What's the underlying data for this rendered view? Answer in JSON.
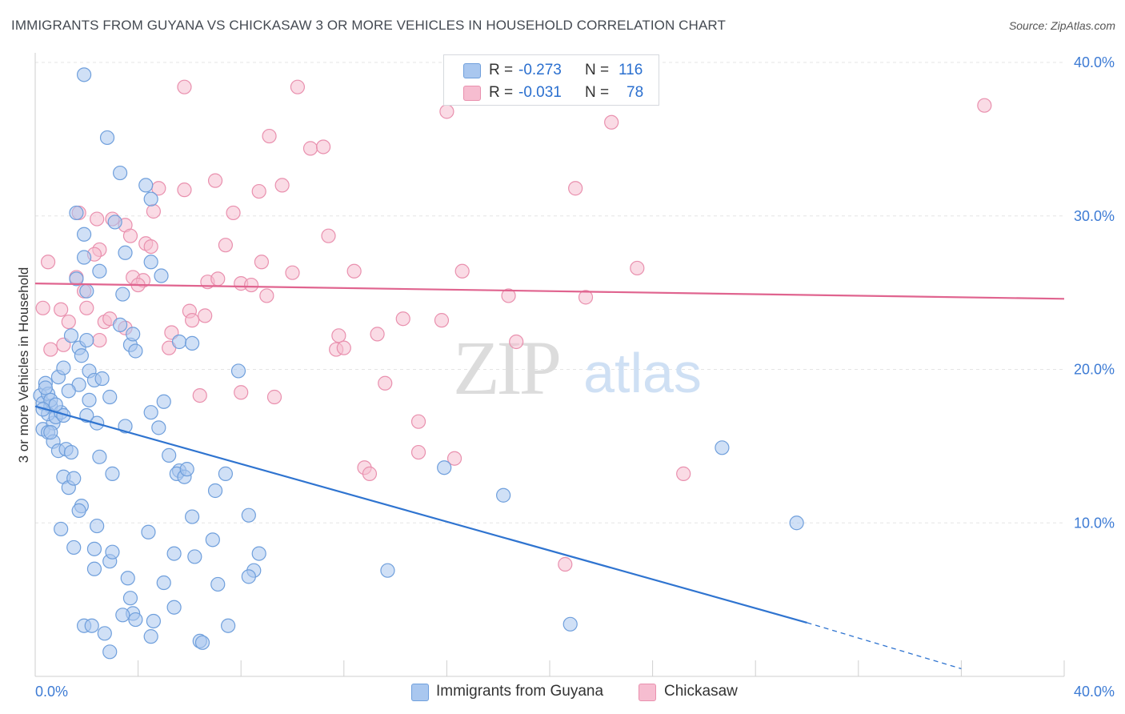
{
  "header": {
    "title": "IMMIGRANTS FROM GUYANA VS CHICKASAW 3 OR MORE VEHICLES IN HOUSEHOLD CORRELATION CHART",
    "source": "Source: ZipAtlas.com"
  },
  "watermark": {
    "zip": "ZIP",
    "atlas": "atlas"
  },
  "legend": {
    "rows": [
      {
        "r_label": "R =",
        "r_value": "-0.273",
        "n_label": "N =",
        "n_value": "116"
      },
      {
        "r_label": "R =",
        "r_value": "-0.031",
        "n_label": "N =",
        "n_value": "78"
      }
    ]
  },
  "bottom_legend": {
    "guyana": "Immigrants from Guyana",
    "chickasaw": "Chickasaw"
  },
  "colors": {
    "guyana_fill": "#a9c7ef",
    "guyana_stroke": "#6f9fdc",
    "guyana_line": "#2f74d0",
    "chickasaw_fill": "#f6bdd0",
    "chickasaw_stroke": "#e990ae",
    "chickasaw_line": "#e0648f",
    "tick_text": "#3d7bd4",
    "grid": "#e5e5e5"
  },
  "chart_data": {
    "type": "scatter",
    "title": "IMMIGRANTS FROM GUYANA VS CHICKASAW 3 OR MORE VEHICLES IN HOUSEHOLD CORRELATION CHART",
    "xlabel": "",
    "ylabel": "3 or more Vehicles in Household",
    "xlim": [
      0,
      40
    ],
    "ylim": [
      0,
      40
    ],
    "x_tick_labels": [
      "0.0%",
      "40.0%"
    ],
    "y_tick_labels": [
      "10.0%",
      "20.0%",
      "30.0%",
      "40.0%"
    ],
    "y_ticks": [
      10,
      20,
      30,
      40
    ],
    "grid": true,
    "legend_position": "top-center",
    "series": [
      {
        "name": "Immigrants from Guyana",
        "R": -0.273,
        "N": 116,
        "trend": {
          "x": [
            0,
            30
          ],
          "y": [
            17.6,
            3.5
          ],
          "dashed_to": [
            36,
            0.5
          ]
        },
        "points": [
          [
            0.2,
            18.3
          ],
          [
            0.3,
            17.8
          ],
          [
            0.4,
            19.1
          ],
          [
            0.5,
            18.4
          ],
          [
            0.6,
            17.6
          ],
          [
            0.3,
            16.1
          ],
          [
            0.7,
            16.5
          ],
          [
            0.5,
            17.1
          ],
          [
            0.9,
            19.5
          ],
          [
            0.4,
            18.8
          ],
          [
            0.6,
            18.0
          ],
          [
            0.8,
            16.9
          ],
          [
            0.3,
            17.4
          ],
          [
            0.5,
            15.9
          ],
          [
            1.0,
            17.2
          ],
          [
            0.7,
            15.3
          ],
          [
            0.9,
            14.7
          ],
          [
            1.2,
            14.8
          ],
          [
            1.4,
            14.6
          ],
          [
            1.1,
            13.0
          ],
          [
            1.3,
            12.3
          ],
          [
            1.5,
            12.9
          ],
          [
            1.8,
            11.1
          ],
          [
            1.7,
            10.8
          ],
          [
            1.0,
            9.6
          ],
          [
            2.4,
            9.8
          ],
          [
            1.5,
            8.4
          ],
          [
            2.3,
            7.0
          ],
          [
            2.9,
            7.5
          ],
          [
            3.6,
            6.4
          ],
          [
            3.7,
            5.1
          ],
          [
            3.8,
            4.1
          ],
          [
            3.4,
            4.0
          ],
          [
            3.9,
            3.7
          ],
          [
            4.5,
            2.6
          ],
          [
            4.6,
            3.6
          ],
          [
            2.7,
            2.8
          ],
          [
            1.9,
            3.3
          ],
          [
            2.9,
            1.6
          ],
          [
            2.2,
            3.3
          ],
          [
            1.6,
            30.2
          ],
          [
            1.9,
            27.3
          ],
          [
            1.9,
            28.8
          ],
          [
            3.1,
            29.6
          ],
          [
            2.5,
            26.4
          ],
          [
            3.5,
            27.6
          ],
          [
            1.6,
            25.9
          ],
          [
            2.0,
            25.1
          ],
          [
            4.5,
            31.1
          ],
          [
            4.3,
            32.0
          ],
          [
            3.3,
            32.8
          ],
          [
            1.9,
            39.2
          ],
          [
            2.8,
            35.1
          ],
          [
            3.4,
            24.9
          ],
          [
            4.5,
            27.0
          ],
          [
            4.9,
            26.1
          ],
          [
            1.4,
            22.2
          ],
          [
            1.7,
            21.4
          ],
          [
            2.0,
            21.9
          ],
          [
            1.8,
            20.9
          ],
          [
            3.3,
            22.9
          ],
          [
            3.7,
            21.6
          ],
          [
            3.8,
            22.3
          ],
          [
            3.9,
            21.2
          ],
          [
            2.1,
            19.9
          ],
          [
            2.3,
            19.3
          ],
          [
            1.1,
            20.1
          ],
          [
            1.7,
            19.0
          ],
          [
            2.1,
            18.0
          ],
          [
            2.9,
            18.2
          ],
          [
            2.4,
            16.5
          ],
          [
            3.5,
            16.3
          ],
          [
            4.5,
            17.2
          ],
          [
            4.8,
            16.2
          ],
          [
            5.0,
            17.9
          ],
          [
            5.6,
            21.8
          ],
          [
            6.1,
            21.7
          ],
          [
            5.2,
            14.4
          ],
          [
            5.6,
            13.4
          ],
          [
            5.5,
            13.2
          ],
          [
            5.8,
            13.0
          ],
          [
            5.9,
            13.5
          ],
          [
            3.0,
            13.2
          ],
          [
            2.5,
            14.3
          ],
          [
            6.1,
            10.4
          ],
          [
            7.0,
            12.1
          ],
          [
            7.4,
            13.2
          ],
          [
            6.9,
            8.9
          ],
          [
            8.3,
            10.5
          ],
          [
            8.7,
            8.0
          ],
          [
            5.4,
            8.0
          ],
          [
            6.2,
            7.8
          ],
          [
            7.1,
            6.0
          ],
          [
            8.5,
            6.9
          ],
          [
            8.3,
            6.5
          ],
          [
            5.4,
            4.5
          ],
          [
            5.0,
            6.1
          ],
          [
            6.4,
            2.3
          ],
          [
            6.5,
            2.2
          ],
          [
            7.5,
            3.3
          ],
          [
            4.4,
            9.4
          ],
          [
            3.0,
            8.1
          ],
          [
            7.9,
            19.9
          ],
          [
            13.7,
            6.9
          ],
          [
            15.9,
            13.6
          ],
          [
            18.2,
            11.8
          ],
          [
            20.8,
            3.4
          ],
          [
            26.7,
            14.9
          ],
          [
            29.6,
            10.0
          ],
          [
            2.3,
            8.3
          ],
          [
            2.0,
            17.0
          ],
          [
            1.3,
            18.6
          ],
          [
            0.6,
            15.9
          ],
          [
            0.8,
            17.7
          ],
          [
            1.1,
            17.0
          ],
          [
            2.6,
            19.4
          ]
        ]
      },
      {
        "name": "Chickasaw",
        "R": -0.031,
        "N": 78,
        "trend": {
          "x": [
            0,
            40
          ],
          "y": [
            25.6,
            24.6
          ]
        },
        "points": [
          [
            0.5,
            27.0
          ],
          [
            0.3,
            24.0
          ],
          [
            1.0,
            23.9
          ],
          [
            1.3,
            23.1
          ],
          [
            1.1,
            21.6
          ],
          [
            0.6,
            21.3
          ],
          [
            1.6,
            26.0
          ],
          [
            1.9,
            25.1
          ],
          [
            2.0,
            24.0
          ],
          [
            2.5,
            21.9
          ],
          [
            2.7,
            23.1
          ],
          [
            2.5,
            27.8
          ],
          [
            2.9,
            23.3
          ],
          [
            3.5,
            22.7
          ],
          [
            2.3,
            27.5
          ],
          [
            1.7,
            30.2
          ],
          [
            2.4,
            29.8
          ],
          [
            3.0,
            29.8
          ],
          [
            3.5,
            29.4
          ],
          [
            3.7,
            28.7
          ],
          [
            4.3,
            28.2
          ],
          [
            4.5,
            28.0
          ],
          [
            3.8,
            26.0
          ],
          [
            4.2,
            25.8
          ],
          [
            4.0,
            25.5
          ],
          [
            4.6,
            30.3
          ],
          [
            4.8,
            31.8
          ],
          [
            5.3,
            22.4
          ],
          [
            5.2,
            21.4
          ],
          [
            5.8,
            31.7
          ],
          [
            6.0,
            23.8
          ],
          [
            6.1,
            23.2
          ],
          [
            6.4,
            18.3
          ],
          [
            6.7,
            25.7
          ],
          [
            6.6,
            23.5
          ],
          [
            7.1,
            25.9
          ],
          [
            7.0,
            32.3
          ],
          [
            7.4,
            28.1
          ],
          [
            7.7,
            30.2
          ],
          [
            8.0,
            18.5
          ],
          [
            8.0,
            25.6
          ],
          [
            8.4,
            25.5
          ],
          [
            8.7,
            31.6
          ],
          [
            9.1,
            35.2
          ],
          [
            9.0,
            24.8
          ],
          [
            9.3,
            18.2
          ],
          [
            9.6,
            32.0
          ],
          [
            8.8,
            27.0
          ],
          [
            10.2,
            38.4
          ],
          [
            10.0,
            26.3
          ],
          [
            10.7,
            34.4
          ],
          [
            11.2,
            34.5
          ],
          [
            11.4,
            28.7
          ],
          [
            11.7,
            21.3
          ],
          [
            11.8,
            22.2
          ],
          [
            12.0,
            21.4
          ],
          [
            12.4,
            26.4
          ],
          [
            12.8,
            13.6
          ],
          [
            13.0,
            13.2
          ],
          [
            13.3,
            22.3
          ],
          [
            13.6,
            19.1
          ],
          [
            14.3,
            23.3
          ],
          [
            14.9,
            16.6
          ],
          [
            14.9,
            14.6
          ],
          [
            15.8,
            23.2
          ],
          [
            16.0,
            36.8
          ],
          [
            16.3,
            14.2
          ],
          [
            16.6,
            26.4
          ],
          [
            18.4,
            24.8
          ],
          [
            18.7,
            21.8
          ],
          [
            20.6,
            7.3
          ],
          [
            21.0,
            31.8
          ],
          [
            21.4,
            24.7
          ],
          [
            22.4,
            36.1
          ],
          [
            23.4,
            26.6
          ],
          [
            25.2,
            13.2
          ],
          [
            36.9,
            37.2
          ],
          [
            5.8,
            38.4
          ]
        ]
      }
    ]
  }
}
